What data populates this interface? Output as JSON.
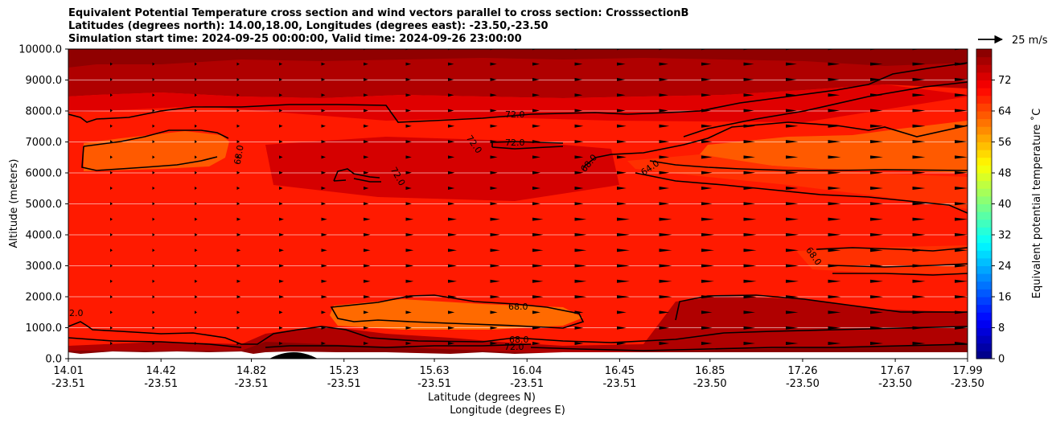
{
  "chart_data": {
    "type": "contour",
    "title_lines": [
      "Equivalent Potential Temperature cross section and wind vectors parallel to cross section: CrosssectionB",
      "Latitudes (degrees north): 14.00,18.00, Longitudes (degrees east): -23.50,-23.50",
      "Simulation start time: 2024-09-25 00:00:00, Valid time: 2024-09-26 23:00:00"
    ],
    "ylabel": "Altitude (meters)",
    "xlabel_lat": "Latitude (degrees N)",
    "xlabel_lon": "Longitude (degrees E)",
    "ylim": [
      0,
      10000
    ],
    "y_ticks": [
      "0.0",
      "1000.0",
      "2000.0",
      "3000.0",
      "4000.0",
      "5000.0",
      "6000.0",
      "7000.0",
      "8000.0",
      "9000.0",
      "10000.0"
    ],
    "x_ticks": [
      {
        "lat": "14.01",
        "lon": "-23.51"
      },
      {
        "lat": "14.42",
        "lon": "-23.51"
      },
      {
        "lat": "14.82",
        "lon": "-23.51"
      },
      {
        "lat": "15.23",
        "lon": "-23.51"
      },
      {
        "lat": "15.63",
        "lon": "-23.51"
      },
      {
        "lat": "16.04",
        "lon": "-23.51"
      },
      {
        "lat": "16.45",
        "lon": "-23.51"
      },
      {
        "lat": "16.85",
        "lon": "-23.50"
      },
      {
        "lat": "17.26",
        "lon": "-23.50"
      },
      {
        "lat": "17.67",
        "lon": "-23.50"
      },
      {
        "lat": "17.99",
        "lon": "-23.50"
      }
    ],
    "colorbar": {
      "label": "Equivalent potential temperature $^\\circ$C",
      "label_display": "Equivalent potential temperature ˚C",
      "range": [
        0,
        80
      ],
      "ticks": [
        "0",
        "8",
        "16",
        "24",
        "32",
        "40",
        "48",
        "56",
        "64",
        "72"
      ],
      "colormap": "jet"
    },
    "contour_labels": [
      "72.0",
      "72.0",
      "72.0",
      "68.0",
      "68.0",
      "68.0",
      "68.0",
      "64.0",
      "72.0",
      "68.0",
      "72.0",
      "72.0"
    ],
    "wind_key": {
      "label": "25 m/s",
      "speed": 25
    },
    "grid": "horizontal"
  }
}
